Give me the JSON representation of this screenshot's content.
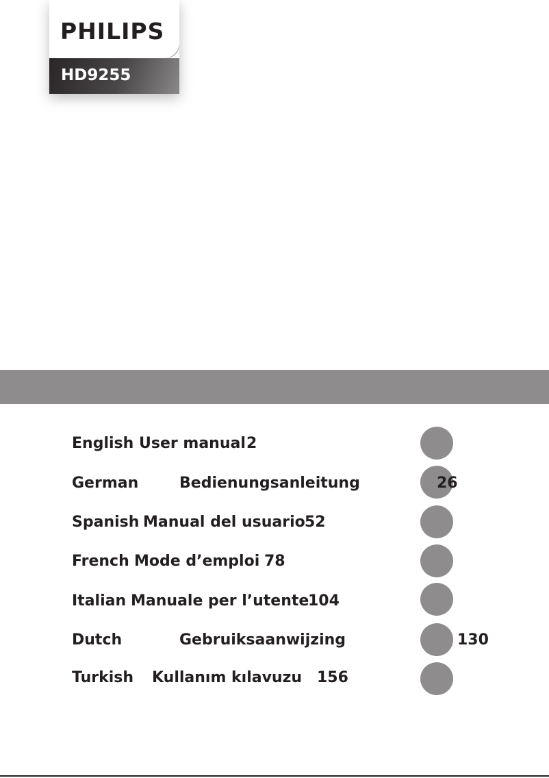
{
  "logo": {
    "brand": "PHILIPS",
    "model": "HD9255"
  },
  "colors": {
    "band": "#8e8c8c",
    "text": "#231f20"
  },
  "languages": [
    {
      "language": "English",
      "title": "User manual",
      "page": "2"
    },
    {
      "language": "German",
      "title": "Bedienungsanleitung",
      "page": "26"
    },
    {
      "language": "Spanish",
      "title": "Manual del usuario",
      "page": "52"
    },
    {
      "language": "French",
      "title": "Mode d’emploi",
      "page": "78"
    },
    {
      "language": "Italian",
      "title": "Manuale per l’utente",
      "page": "104"
    },
    {
      "language": "Dutch",
      "title": "Gebruiksaanwijzing",
      "page": "130"
    },
    {
      "language": "Turkish",
      "title": "Kullanım kılavuzu",
      "page": "156"
    }
  ]
}
